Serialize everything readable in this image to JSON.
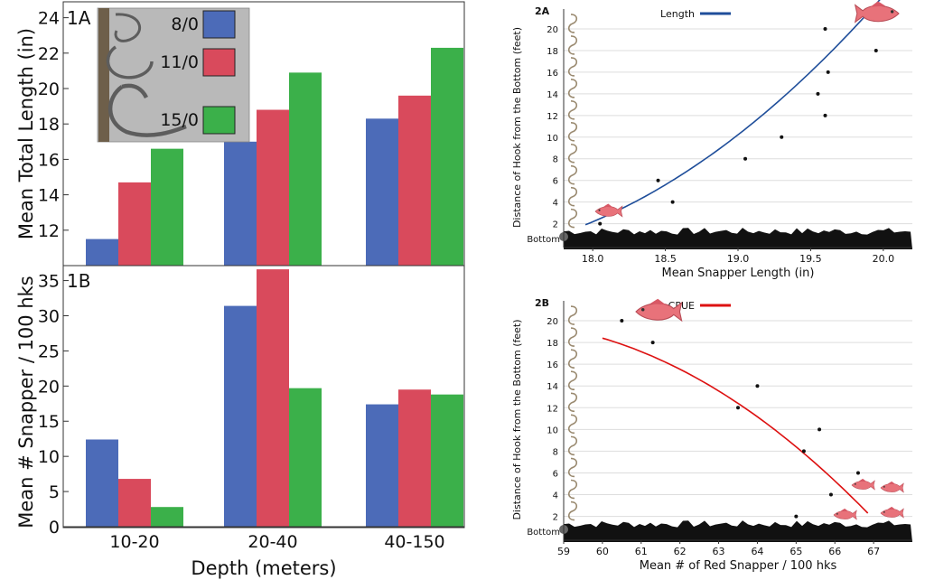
{
  "colors": {
    "blue": "#4c6bb8",
    "red": "#d94a5c",
    "green": "#3bb04a",
    "line_blue": "#1f4e9a",
    "line_red": "#dd1111",
    "ground": "#111111",
    "fish": "#e8727a",
    "hook": "#9a8a70"
  },
  "chart_data": [
    {
      "id": "1A",
      "panel_label": "1A",
      "type": "bar",
      "ylabel": "Mean Total Length (in)",
      "xlabel": "",
      "categories": [
        "10-20",
        "20-40",
        "40-150"
      ],
      "ylim": [
        10,
        25
      ],
      "yticks": [
        12,
        14,
        16,
        18,
        20,
        22,
        24
      ],
      "series": [
        {
          "name": "8/0",
          "color": "blue",
          "values": [
            11.5,
            17.0,
            18.3
          ]
        },
        {
          "name": "11/0",
          "color": "red",
          "values": [
            14.7,
            18.8,
            19.6
          ]
        },
        {
          "name": "15/0",
          "color": "green",
          "values": [
            16.6,
            20.9,
            22.3
          ]
        }
      ],
      "legend": "top-left inset (photo of hooks)"
    },
    {
      "id": "1B",
      "panel_label": "1B",
      "type": "bar",
      "ylabel": "Mean # Snapper / 100 hks",
      "xlabel": "Depth (meters)",
      "categories": [
        "10-20",
        "20-40",
        "40-150"
      ],
      "ylim": [
        0,
        37
      ],
      "yticks": [
        0,
        5,
        10,
        15,
        20,
        25,
        30,
        35
      ],
      "series": [
        {
          "name": "8/0",
          "color": "blue",
          "values": [
            12.4,
            31.4,
            17.4
          ]
        },
        {
          "name": "11/0",
          "color": "red",
          "values": [
            6.8,
            36.6,
            19.5
          ]
        },
        {
          "name": "15/0",
          "color": "green",
          "values": [
            2.8,
            19.7,
            18.8
          ]
        }
      ]
    },
    {
      "id": "2A",
      "panel_label": "2A",
      "type": "scatter",
      "title": "",
      "xlabel": "Mean Snapper Length (in)",
      "ylabel": "Distance of Hook from the Bottom (feet)",
      "xlim": [
        17.8,
        20.2
      ],
      "ylim": [
        0.8,
        21
      ],
      "xticks": [
        18.0,
        18.5,
        19.0,
        19.5,
        20.0
      ],
      "xtick_labels": [
        "18.0",
        "18.5",
        "19.0",
        "19.5",
        "20.0"
      ],
      "yticks": [
        2,
        4,
        6,
        8,
        10,
        12,
        14,
        16,
        18,
        20
      ],
      "bottom_label": "Bottom",
      "legend_label": "Length",
      "points": [
        {
          "x": 18.05,
          "y": 2
        },
        {
          "x": 18.45,
          "y": 6
        },
        {
          "x": 18.55,
          "y": 4
        },
        {
          "x": 19.05,
          "y": 8
        },
        {
          "x": 19.3,
          "y": 10
        },
        {
          "x": 19.55,
          "y": 14
        },
        {
          "x": 19.6,
          "y": 20
        },
        {
          "x": 19.6,
          "y": 12
        },
        {
          "x": 19.62,
          "y": 16
        },
        {
          "x": 19.95,
          "y": 18
        }
      ],
      "fit": {
        "x_from": 17.95,
        "x_to": 20.0,
        "coef": [
          1.9,
          5.4,
          2.4
        ]
      }
    },
    {
      "id": "2B",
      "panel_label": "2B",
      "type": "scatter",
      "xlabel": "Mean # of Red Snapper / 100 hks",
      "ylabel": "Distance of Hook from the Bottom (feet)",
      "xlim": [
        59,
        68
      ],
      "ylim": [
        0.8,
        21
      ],
      "xticks": [
        59,
        60,
        61,
        62,
        63,
        64,
        65,
        66,
        67
      ],
      "xtick_labels": [
        "59",
        "60",
        "61",
        "62",
        "63",
        "64",
        "65",
        "66",
        "67"
      ],
      "yticks": [
        2,
        4,
        6,
        8,
        10,
        12,
        14,
        16,
        18,
        20
      ],
      "bottom_label": "Bottom",
      "legend_label": "CPUE",
      "points": [
        {
          "x": 60.5,
          "y": 20
        },
        {
          "x": 61.3,
          "y": 18
        },
        {
          "x": 63.5,
          "y": 12
        },
        {
          "x": 64.0,
          "y": 14
        },
        {
          "x": 65.0,
          "y": 2
        },
        {
          "x": 65.2,
          "y": 8
        },
        {
          "x": 65.6,
          "y": 10
        },
        {
          "x": 65.9,
          "y": 4
        },
        {
          "x": 66.6,
          "y": 6
        }
      ],
      "fit": {
        "x_from": 60.0,
        "x_to": 66.85,
        "coef": [
          18.4,
          -1.05,
          -0.19
        ]
      }
    }
  ]
}
